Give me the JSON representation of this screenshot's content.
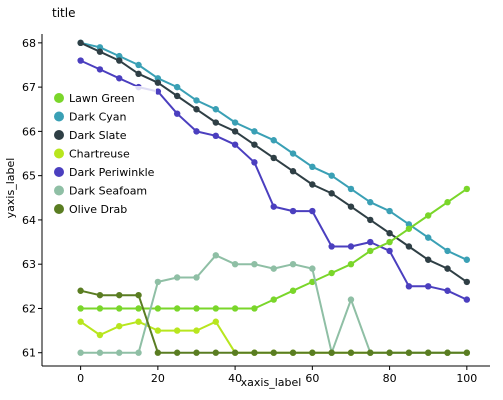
{
  "chart_data": {
    "type": "line",
    "title": "title",
    "xlabel": "xaxis_label",
    "ylabel": "yaxis_label",
    "xlim": [
      -10,
      106
    ],
    "ylim": [
      60.7,
      68.2
    ],
    "xticks": [
      0,
      20,
      40,
      60,
      80,
      100
    ],
    "yticks": [
      61,
      62,
      63,
      64,
      65,
      66,
      67,
      68
    ],
    "grid": false,
    "legend_position": "left",
    "legend": [
      "Lawn Green",
      "Dark Cyan",
      "Dark Slate",
      "Chartreuse",
      "Dark Periwinkle",
      "Dark Seafoam",
      "Olive Drab"
    ],
    "series": [
      {
        "name": "Dark Cyan",
        "color": "#3aa0b5",
        "x": [
          0,
          5,
          10,
          15,
          20,
          25,
          30,
          35,
          40,
          45,
          50,
          55,
          60,
          65,
          70,
          75,
          80,
          85,
          90,
          95,
          100
        ],
        "y": [
          68.0,
          67.9,
          67.7,
          67.5,
          67.2,
          67.0,
          66.7,
          66.5,
          66.2,
          66.0,
          65.8,
          65.5,
          65.2,
          65.0,
          64.7,
          64.4,
          64.2,
          63.9,
          63.6,
          63.3,
          63.1
        ]
      },
      {
        "name": "Dark Slate",
        "color": "#2f3f45",
        "x": [
          0,
          5,
          10,
          15,
          20,
          25,
          30,
          35,
          40,
          45,
          50,
          55,
          60,
          65,
          70,
          75,
          80,
          85,
          90,
          95,
          100
        ],
        "y": [
          68.0,
          67.8,
          67.6,
          67.3,
          67.1,
          66.8,
          66.5,
          66.2,
          66.0,
          65.7,
          65.4,
          65.1,
          64.8,
          64.6,
          64.3,
          64.0,
          63.7,
          63.4,
          63.1,
          62.9,
          62.6
        ]
      },
      {
        "name": "Dark Periwinkle",
        "color": "#4b3fbf",
        "x": [
          0,
          5,
          10,
          15,
          20,
          25,
          30,
          35,
          40,
          45,
          50,
          55,
          60,
          65,
          70,
          75,
          80,
          85,
          90,
          95,
          100
        ],
        "y": [
          67.6,
          67.4,
          67.2,
          67.0,
          66.9,
          66.4,
          66.0,
          65.9,
          65.7,
          65.3,
          64.3,
          64.2,
          64.2,
          63.4,
          63.4,
          63.5,
          63.3,
          62.5,
          62.5,
          62.4,
          62.2
        ]
      },
      {
        "name": "Lawn Green",
        "color": "#7ad62a",
        "x": [
          0,
          5,
          10,
          15,
          20,
          25,
          30,
          35,
          40,
          45,
          50,
          55,
          60,
          65,
          70,
          75,
          80,
          85,
          90,
          95,
          100
        ],
        "y": [
          62.0,
          62.0,
          62.0,
          62.0,
          62.0,
          62.0,
          62.0,
          62.0,
          62.0,
          62.0,
          62.2,
          62.4,
          62.6,
          62.8,
          63.0,
          63.3,
          63.5,
          63.8,
          64.1,
          64.4,
          64.7
        ]
      },
      {
        "name": "Chartreuse",
        "color": "#b8e61e",
        "x": [
          0,
          5,
          10,
          15,
          20,
          25,
          30,
          35,
          40,
          45,
          50,
          55,
          60,
          65,
          70,
          75,
          80,
          85,
          90,
          95,
          100
        ],
        "y": [
          61.7,
          61.4,
          61.6,
          61.7,
          61.5,
          61.5,
          61.5,
          61.7,
          61.0,
          61.0,
          61.0,
          61.0,
          61.0,
          61.0,
          61.0,
          61.0,
          61.0,
          61.0,
          61.0,
          61.0,
          61.0
        ]
      },
      {
        "name": "Dark Seafoam",
        "color": "#8fbfa5",
        "x": [
          0,
          5,
          10,
          15,
          20,
          25,
          30,
          35,
          40,
          45,
          50,
          55,
          60,
          65,
          70,
          75,
          80,
          85,
          90,
          95,
          100
        ],
        "y": [
          61.0,
          61.0,
          61.0,
          61.0,
          62.6,
          62.7,
          62.7,
          63.2,
          63.0,
          63.0,
          62.9,
          63.0,
          62.9,
          61.0,
          62.2,
          61.0,
          61.0,
          61.0,
          61.0,
          61.0,
          61.0
        ]
      },
      {
        "name": "Olive Drab",
        "color": "#5a7d22",
        "x": [
          0,
          5,
          10,
          15,
          20,
          25,
          30,
          35,
          40,
          45,
          50,
          55,
          60,
          65,
          70,
          75,
          80,
          85,
          90,
          95,
          100
        ],
        "y": [
          62.4,
          62.3,
          62.3,
          62.3,
          61.0,
          61.0,
          61.0,
          61.0,
          61.0,
          61.0,
          61.0,
          61.0,
          61.0,
          61.0,
          61.0,
          61.0,
          61.0,
          61.0,
          61.0,
          61.0,
          61.0
        ]
      }
    ]
  }
}
